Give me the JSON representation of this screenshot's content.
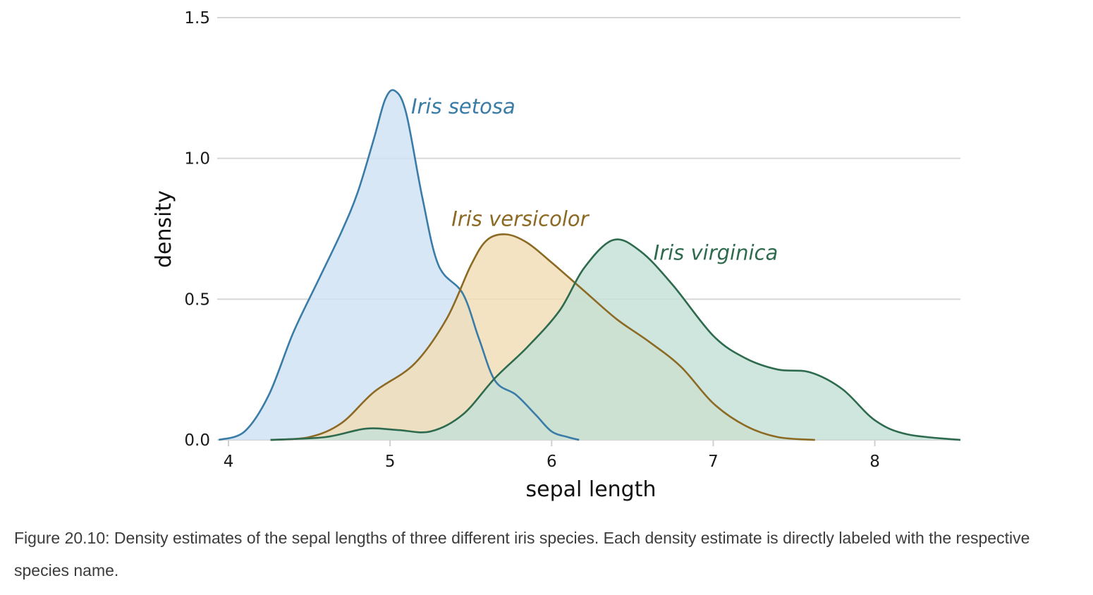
{
  "chart_data": {
    "type": "area",
    "xlabel": "sepal length",
    "ylabel": "density",
    "xlim": [
      3.93,
      8.53
    ],
    "ylim": [
      0,
      1.5
    ],
    "x_ticks": [
      "4",
      "5",
      "6",
      "7",
      "8"
    ],
    "y_ticks": [
      "0.0",
      "0.5",
      "1.0",
      "1.5"
    ],
    "grid": "horizontal",
    "legend": "direct labels",
    "series": [
      {
        "name": "Iris setosa",
        "color": "#3a7ca8",
        "fill": "#cfe2f4",
        "points": [
          [
            3.94,
            0.0
          ],
          [
            4.1,
            0.03
          ],
          [
            4.25,
            0.16
          ],
          [
            4.4,
            0.38
          ],
          [
            4.55,
            0.56
          ],
          [
            4.7,
            0.74
          ],
          [
            4.8,
            0.88
          ],
          [
            4.9,
            1.07
          ],
          [
            4.97,
            1.21
          ],
          [
            5.03,
            1.24
          ],
          [
            5.1,
            1.16
          ],
          [
            5.2,
            0.86
          ],
          [
            5.3,
            0.62
          ],
          [
            5.45,
            0.52
          ],
          [
            5.55,
            0.36
          ],
          [
            5.65,
            0.21
          ],
          [
            5.78,
            0.16
          ],
          [
            5.9,
            0.09
          ],
          [
            6.0,
            0.03
          ],
          [
            6.1,
            0.01
          ],
          [
            6.17,
            0.0
          ]
        ]
      },
      {
        "name": "Iris versicolor",
        "color": "#8c6a24",
        "fill": "#f2ddb6",
        "points": [
          [
            4.26,
            0.0
          ],
          [
            4.5,
            0.01
          ],
          [
            4.7,
            0.06
          ],
          [
            4.9,
            0.17
          ],
          [
            5.15,
            0.27
          ],
          [
            5.35,
            0.43
          ],
          [
            5.5,
            0.62
          ],
          [
            5.6,
            0.71
          ],
          [
            5.72,
            0.73
          ],
          [
            5.85,
            0.7
          ],
          [
            6.0,
            0.63
          ],
          [
            6.2,
            0.53
          ],
          [
            6.4,
            0.43
          ],
          [
            6.6,
            0.35
          ],
          [
            6.8,
            0.26
          ],
          [
            7.0,
            0.13
          ],
          [
            7.2,
            0.05
          ],
          [
            7.4,
            0.01
          ],
          [
            7.63,
            0.0
          ]
        ]
      },
      {
        "name": "Iris virginica",
        "color": "#2e6b4e",
        "fill": "#c5e1d7",
        "points": [
          [
            4.26,
            0.0
          ],
          [
            4.6,
            0.01
          ],
          [
            4.85,
            0.04
          ],
          [
            5.05,
            0.035
          ],
          [
            5.25,
            0.03
          ],
          [
            5.45,
            0.09
          ],
          [
            5.65,
            0.22
          ],
          [
            5.85,
            0.33
          ],
          [
            6.05,
            0.46
          ],
          [
            6.2,
            0.61
          ],
          [
            6.38,
            0.71
          ],
          [
            6.55,
            0.67
          ],
          [
            6.75,
            0.55
          ],
          [
            7.0,
            0.37
          ],
          [
            7.2,
            0.29
          ],
          [
            7.4,
            0.25
          ],
          [
            7.6,
            0.24
          ],
          [
            7.8,
            0.18
          ],
          [
            8.0,
            0.07
          ],
          [
            8.2,
            0.02
          ],
          [
            8.53,
            0.0
          ]
        ]
      }
    ],
    "annotations": [
      "Iris setosa",
      "Iris versicolor",
      "Iris virginica"
    ]
  },
  "caption": "Figure 20.10: Density estimates of the sepal lengths of three different iris species. Each density estimate is directly labeled with the respective species name."
}
